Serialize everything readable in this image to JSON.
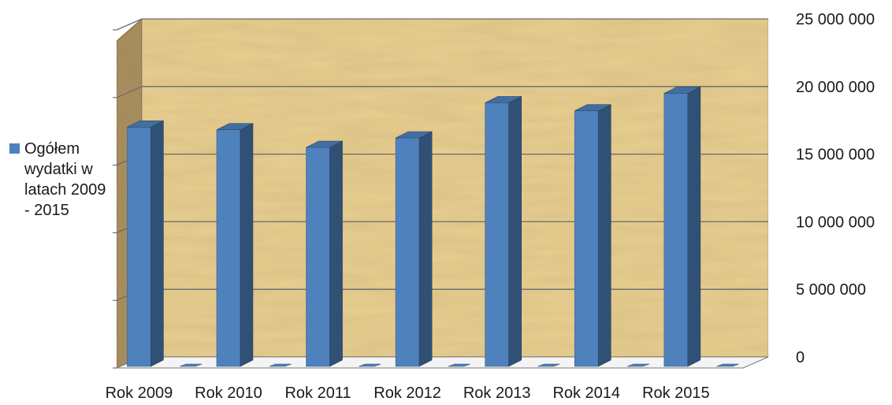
{
  "chart_data": {
    "type": "bar",
    "style": "3d-column",
    "categories": [
      "Rok 2009",
      "",
      "Rok 2010",
      "",
      "Rok 2011",
      "",
      "Rok 2012",
      "",
      "Rok 2013",
      "",
      "Rok 2014",
      "",
      "Rok 2015",
      ""
    ],
    "series": [
      {
        "name": "Ogółem wydatki w latach 2009 - 2015",
        "color": "#4f81bd",
        "values": [
          17700000,
          0,
          17500000,
          0,
          16200000,
          0,
          16900000,
          0,
          19500000,
          0,
          18900000,
          0,
          20200000,
          0
        ]
      }
    ],
    "y_ticks": [
      "0",
      "5 000 000",
      "10 000 000",
      "15 000 000",
      "20 000 000",
      "25 000 000"
    ],
    "ylim": [
      0,
      25000000
    ],
    "y_axis_side": "right",
    "grid": true,
    "legend_position": "left",
    "wall_texture": "papyrus"
  }
}
